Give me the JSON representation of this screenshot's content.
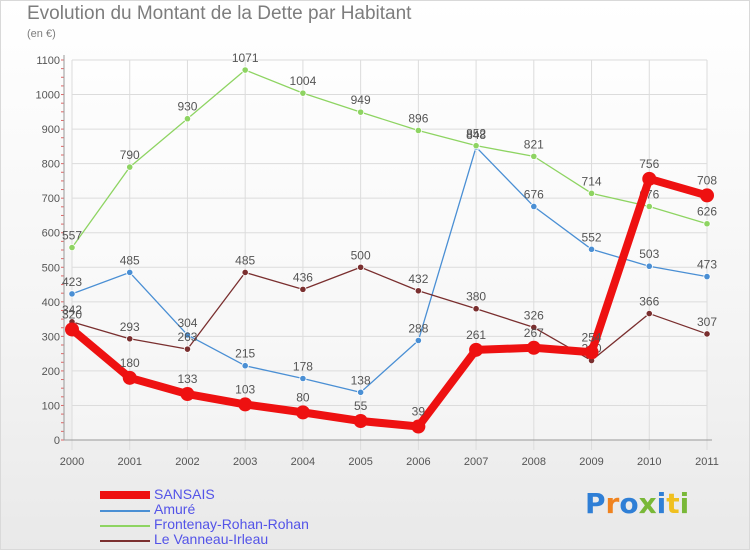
{
  "header": {
    "title": "Evolution du Montant de la Dette par Habitant",
    "subtitle": "(en €)"
  },
  "brand": {
    "text": "Proxiti",
    "colors": [
      "#2f7fd6",
      "#f0831f",
      "#2f7fd6",
      "#79b838",
      "#2f7fd6",
      "#f0c020",
      "#79b838"
    ]
  },
  "chart_data": {
    "type": "line",
    "x": [
      "2000",
      "2001",
      "2002",
      "2003",
      "2004",
      "2005",
      "2006",
      "2007",
      "2008",
      "2009",
      "2010",
      "2011"
    ],
    "ylim": [
      0,
      1100
    ],
    "yticks": [
      "0",
      "100",
      "200",
      "300",
      "400",
      "500",
      "600",
      "700",
      "800",
      "900",
      "1000",
      "1100"
    ],
    "grid": true,
    "legend": "bottom-left",
    "series": [
      {
        "name": "Amuré",
        "color": "#4a8fd4",
        "values": [
          423,
          485,
          304,
          215,
          178,
          138,
          288,
          848,
          676,
          552,
          503,
          473
        ],
        "labels": [
          "423",
          "485",
          "304",
          "215",
          "178",
          "138",
          "288",
          "848",
          "676",
          "552",
          "503",
          "473"
        ]
      },
      {
        "name": "Frontenay-Rohan-Rohan",
        "color": "#8ed462",
        "values": [
          557,
          790,
          930,
          1071,
          1004,
          949,
          896,
          852,
          821,
          714,
          676,
          626
        ],
        "labels": [
          "557",
          "790",
          "930",
          "1071",
          "1004",
          "949",
          "896",
          "852",
          "821",
          "714",
          "676",
          "626"
        ]
      },
      {
        "name": "Le Vanneau-Irleau",
        "color": "#7a2f2f",
        "values": [
          342,
          293,
          263,
          485,
          436,
          500,
          432,
          380,
          326,
          230,
          366,
          307
        ],
        "labels": [
          "342",
          "293",
          "263",
          "485",
          "436",
          "500",
          "432",
          "380",
          "326",
          "230",
          "366",
          "307"
        ]
      },
      {
        "name": "SANSAIS",
        "color": "#ee1111",
        "values": [
          320,
          180,
          133,
          103,
          80,
          55,
          39,
          261,
          267,
          254,
          756,
          708
        ],
        "labels": [
          "320",
          "180",
          "133",
          "103",
          "80",
          "55",
          "39",
          "261",
          "267",
          "254",
          "756",
          "708"
        ]
      }
    ]
  },
  "legend": {
    "items": [
      {
        "label": "SANSAIS",
        "color": "#ee1111",
        "thick": true
      },
      {
        "label": "Amuré",
        "color": "#4a8fd4",
        "thick": false
      },
      {
        "label": "Frontenay-Rohan-Rohan",
        "color": "#8ed462",
        "thick": false
      },
      {
        "label": "Le Vanneau-Irleau",
        "color": "#7a2f2f",
        "thick": false
      }
    ]
  }
}
